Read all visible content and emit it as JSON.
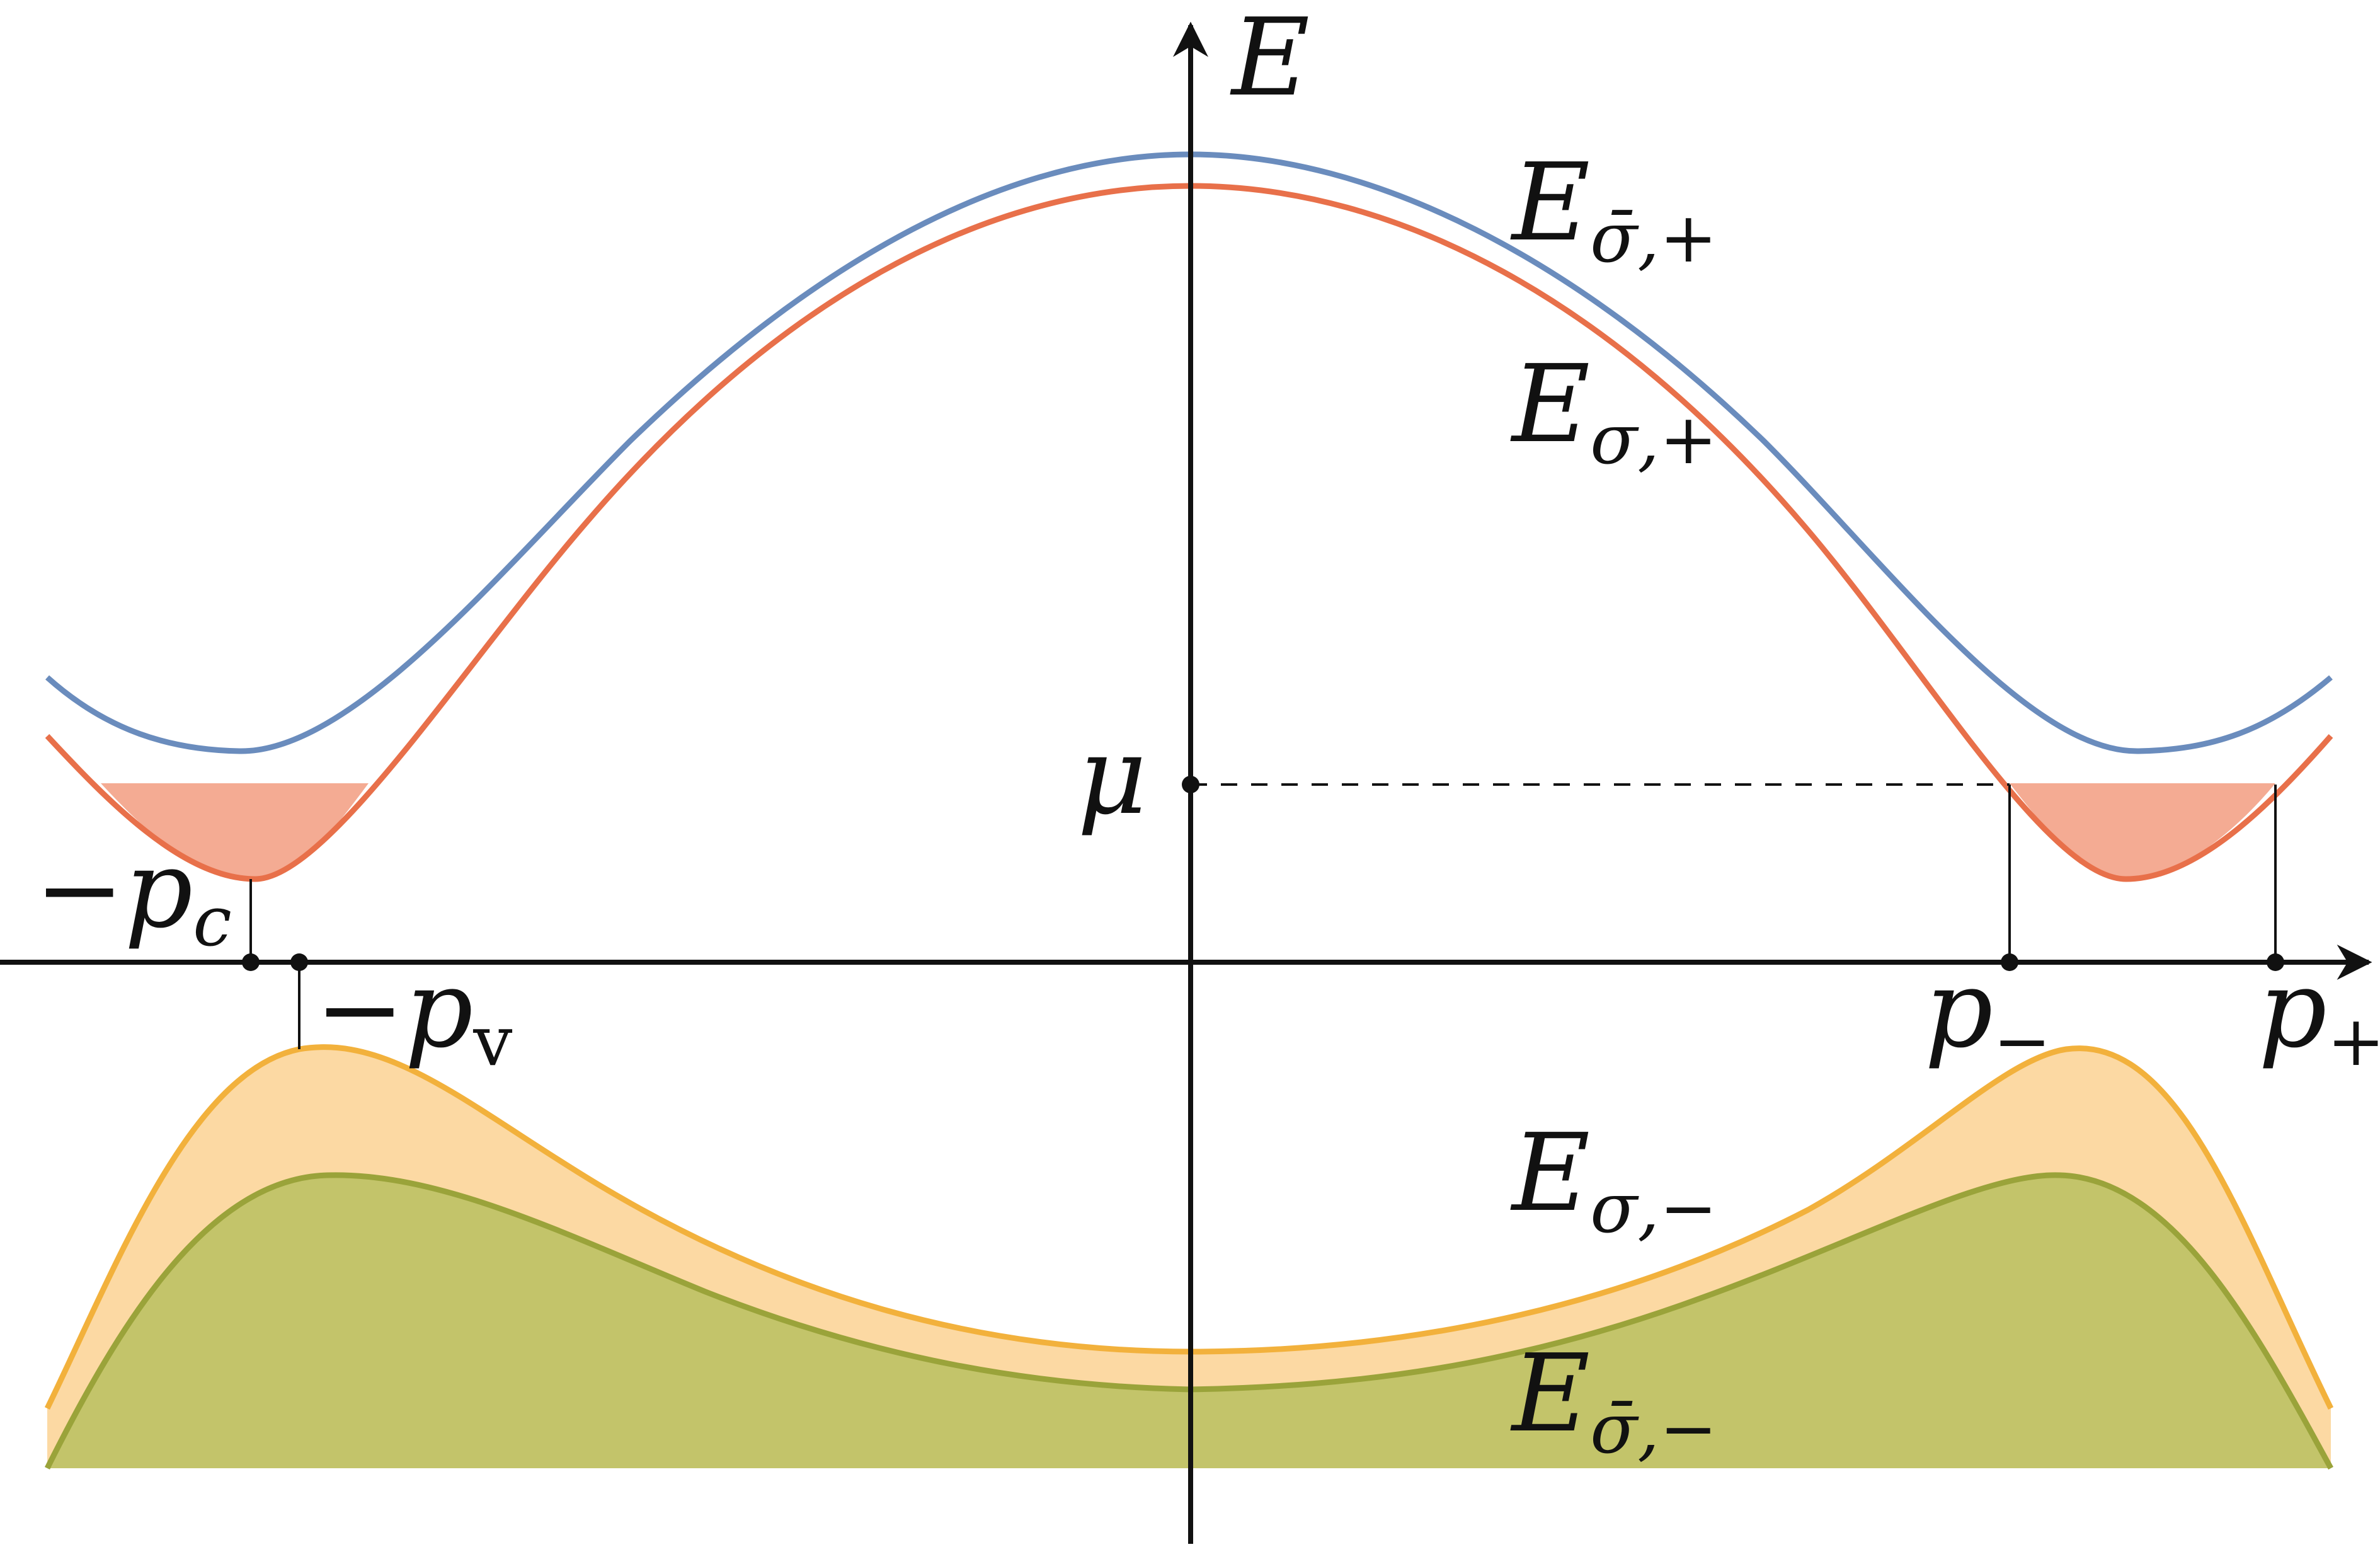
{
  "axes": {
    "energy_label": "E",
    "momentum_ticks": {
      "neg_pc": {
        "base": "−p",
        "sub": "c"
      },
      "neg_pv": {
        "base": "−p",
        "sub": "v"
      },
      "p_minus": {
        "base": "p",
        "sub": "−"
      },
      "p_plus": {
        "base": "p",
        "sub": "+"
      }
    },
    "chemical_potential": "μ"
  },
  "bands": {
    "E_sigmabar_plus": {
      "base": "E",
      "sub": "σ̄,+",
      "color": "#6a8cbd"
    },
    "E_sigma_plus": {
      "base": "E",
      "sub": "σ,+",
      "color": "#e8704a"
    },
    "E_sigma_minus": {
      "base": "E",
      "sub": "σ,−",
      "color": "#f2b13c"
    },
    "E_sigmabar_minus": {
      "base": "E",
      "sub": "σ̄,−",
      "color": "#9aa33a"
    }
  },
  "fills": {
    "conduction_pocket": "#f4ab93",
    "valence_upper": "#fcd9a3",
    "valence_lower": "#c3c46a"
  }
}
